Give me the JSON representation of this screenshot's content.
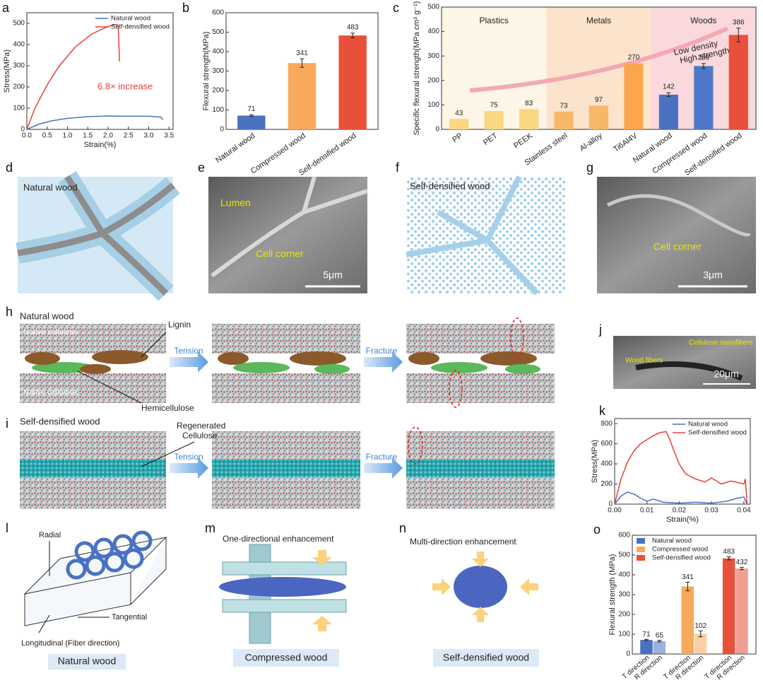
{
  "chart_data": [
    {
      "type": "line",
      "panel": "a",
      "xlabel": "Strain(%)",
      "ylabel": "Stress(MPa)",
      "annotation": "6.8× increase",
      "legend": "upper right",
      "xlim": [
        0,
        3.6
      ],
      "ylim": [
        0,
        550
      ],
      "xticks": [
        {
          "value": 0,
          "label": "0.0"
        },
        0.5,
        {
          "value": 1,
          "label": "1.0"
        },
        1.5,
        {
          "value": 2,
          "label": "2.0"
        },
        2.5,
        {
          "value": 3,
          "label": "3.0"
        },
        3.5
      ],
      "yticks": [
        0,
        100,
        200,
        300,
        400,
        500
      ],
      "series": [
        {
          "name": "Natural wood",
          "color": "#4a72c2",
          "x": [
            0,
            0.3,
            0.6,
            1.0,
            1.5,
            2.0,
            2.5,
            3.0,
            3.3,
            3.35
          ],
          "values": [
            0,
            25,
            40,
            52,
            60,
            63,
            62,
            62,
            58,
            45
          ]
        },
        {
          "name": "Self-densified wood",
          "color": "#e8403a",
          "x": [
            0,
            0.2,
            0.5,
            0.8,
            1.2,
            1.6,
            2.0,
            2.2,
            2.25,
            2.28
          ],
          "values": [
            0,
            100,
            210,
            300,
            390,
            450,
            485,
            495,
            490,
            320
          ]
        }
      ]
    },
    {
      "type": "bar",
      "panel": "b",
      "ylabel": "Flexural strength(MPa)",
      "ylim": [
        0,
        600
      ],
      "yticks": [
        0,
        100,
        200,
        300,
        400,
        500,
        600
      ],
      "categories": [
        "Natural wood",
        "Compressed wood",
        "Self-densified wood"
      ],
      "values": [
        71,
        341,
        483
      ],
      "errors": [
        4,
        22,
        12
      ],
      "colors": [
        "#4a72c2",
        "#f9a95a",
        "#e8503a"
      ]
    },
    {
      "type": "bar",
      "panel": "c",
      "ylabel": "Specific flexural strength(MPa cm³ g⁻¹)",
      "ylim": [
        0,
        500
      ],
      "yticks": [
        0,
        100,
        200,
        300,
        400,
        500
      ],
      "regions": [
        {
          "label": "Plastics",
          "color": "#fdf5e6"
        },
        {
          "label": "Metals",
          "color": "#fbe4cb"
        },
        {
          "label": "Woods",
          "color": "#fbd8dc"
        }
      ],
      "annotation": [
        "Low density",
        "High strength"
      ],
      "categories": [
        "PP",
        "PET",
        "PEEK",
        "Stainless steel",
        "Al-alloy",
        "Ti6Al4V",
        "Natural wood",
        "Compressed wood",
        "Self-densified wood"
      ],
      "values": [
        43,
        75,
        83,
        73,
        97,
        270,
        142,
        259,
        386
      ],
      "errors": [
        null,
        null,
        null,
        null,
        null,
        null,
        8,
        10,
        28
      ],
      "colors": [
        "#fcd680",
        "#fcd680",
        "#fcd680",
        "#f8b768",
        "#f8b768",
        "#f9a64e",
        "#4a72c2",
        "#4f78c8",
        "#e8503a"
      ]
    },
    {
      "type": "line",
      "panel": "k",
      "xlabel": "Strain(%)",
      "ylabel": "Stress(MPa)",
      "legend": "upper right",
      "xlim": [
        0,
        0.042
      ],
      "ylim": [
        0,
        850
      ],
      "xticks": [
        {
          "value": 0,
          "label": "0.00"
        },
        0.01,
        0.02,
        0.03,
        0.04
      ],
      "yticks": [
        0,
        200,
        400,
        600,
        800
      ],
      "series": [
        {
          "name": "Natural wood",
          "color": "#4a72c2",
          "x": [
            0,
            0.002,
            0.004,
            0.006,
            0.008,
            0.01,
            0.012,
            0.015,
            0.02,
            0.025,
            0.03,
            0.035,
            0.038,
            0.04,
            0.041
          ],
          "values": [
            0,
            80,
            120,
            100,
            60,
            30,
            50,
            20,
            10,
            20,
            10,
            30,
            60,
            70,
            0
          ]
        },
        {
          "name": "Self-densified wood",
          "color": "#e8403a",
          "x": [
            0,
            0.002,
            0.004,
            0.006,
            0.008,
            0.01,
            0.012,
            0.014,
            0.016,
            0.017,
            0.018,
            0.02,
            0.022,
            0.025,
            0.028,
            0.03,
            0.033,
            0.036,
            0.04,
            0.0405,
            0.041
          ],
          "values": [
            0,
            250,
            420,
            530,
            600,
            640,
            680,
            710,
            720,
            650,
            560,
            400,
            300,
            250,
            220,
            260,
            200,
            230,
            200,
            250,
            0
          ]
        }
      ]
    },
    {
      "type": "bar",
      "panel": "o",
      "ylabel": "Flexural strength (MPa)",
      "legend": "upper left",
      "ylim": [
        0,
        600
      ],
      "yticks": [
        0,
        100,
        200,
        300,
        400,
        500,
        600
      ],
      "categories": [
        "T direction",
        "R direction"
      ],
      "series": [
        {
          "name": "Natural wood",
          "color": "#4a72c2",
          "values": [
            71,
            65
          ],
          "errors": [
            3,
            4
          ]
        },
        {
          "name": "Compressed wood",
          "color": "#f9a95a",
          "values": [
            341,
            102
          ],
          "errors": [
            22,
            15
          ]
        },
        {
          "name": "Self-densified wood",
          "color": "#e8503a",
          "values": [
            483,
            432
          ],
          "errors": [
            8,
            6
          ]
        }
      ]
    }
  ],
  "panels": [
    {
      "letter": "d",
      "texts": [
        "Natural wood"
      ]
    },
    {
      "letter": "e",
      "texts": [
        "Lumen",
        "Cell corner",
        "5μm"
      ]
    },
    {
      "letter": "f",
      "texts": [
        "Self-densified wood"
      ]
    },
    {
      "letter": "g",
      "texts": [
        "Cell corner",
        "3μm"
      ]
    },
    {
      "letter": "h",
      "texts": [
        "Natural wood",
        "Native cellulose",
        "Native cellulose",
        "Lignin",
        "Hemicellulose",
        "Tension",
        "Fracture"
      ]
    },
    {
      "letter": "i",
      "texts": [
        "Self-densified wood",
        "Regenerated",
        "Cellulose",
        "Tension",
        "Fracture"
      ]
    },
    {
      "letter": "j",
      "texts": [
        "Cellulose nanofibers",
        "Wood fibers",
        "20μm"
      ]
    },
    {
      "letter": "l",
      "texts": [
        "Radial",
        "Tangential",
        "Longitudinal (Fiber direction)",
        "Natural wood"
      ]
    },
    {
      "letter": "m",
      "texts": [
        "One-directional enhancement",
        "Compressed wood"
      ]
    },
    {
      "letter": "n",
      "texts": [
        "Multi-direction enhancement",
        "Self-densified wood"
      ]
    }
  ]
}
